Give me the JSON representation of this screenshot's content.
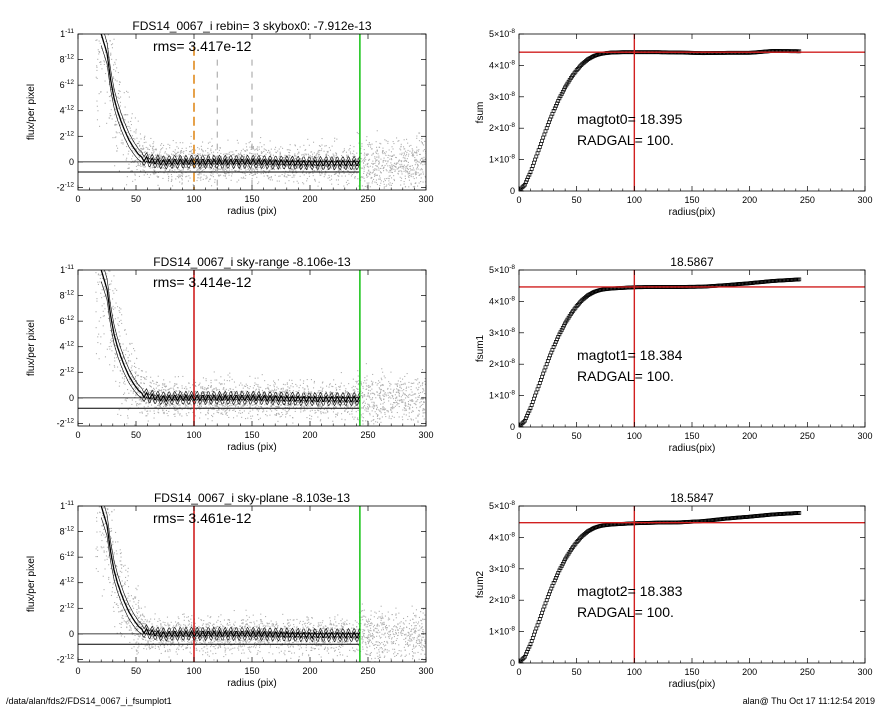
{
  "footer": {
    "path": "/data/alan/fds2/FDS14_0067_i_fsumplot1",
    "stamp": "alan@  Thu Oct 17 11:12:54 2019"
  },
  "colors": {
    "scatter": "#b0b0b0",
    "orange": "#e08a1e",
    "red": "#d11f1f",
    "green": "#22c522",
    "profile": "#000000"
  },
  "chart_data": [
    {
      "type": "scatter",
      "title": "FDS14_0067_i rebin= 3    skybox0: -7.912e-13",
      "annotation": "rms= 3.417e-12",
      "xlabel": "radius (pix)",
      "ylabel": "flux/per pixel",
      "xlim": [
        0,
        300
      ],
      "ylim": [
        -2.2e-12,
        1e-11
      ],
      "xticks": [
        "0",
        "50",
        "100",
        "150",
        "200",
        "250",
        "300"
      ],
      "yticks": [
        {
          "v": 1e-11,
          "m": "1",
          "e": "-11"
        },
        {
          "v": 8e-12,
          "m": "8",
          "e": "-12"
        },
        {
          "v": 6e-12,
          "m": "6",
          "e": "-12"
        },
        {
          "v": 4e-12,
          "m": "4",
          "e": "-12"
        },
        {
          "v": 2e-12,
          "m": "2",
          "e": "-12"
        },
        {
          "v": 0,
          "m": "0",
          "e": ""
        },
        {
          "v": -2e-12,
          "m": "-2",
          "e": "-12"
        }
      ],
      "profile": {
        "radius": [
          20,
          25,
          28,
          31,
          34,
          37,
          40,
          44,
          48,
          52,
          56,
          60,
          65,
          70,
          75,
          80,
          90,
          100,
          120,
          150,
          200,
          243
        ],
        "flux": [
          1e-11,
          8.5e-12,
          6.5e-12,
          5e-12,
          4e-12,
          3.2e-12,
          2.5e-12,
          1.7e-12,
          1.1e-12,
          6e-13,
          3e-13,
          1.5e-13,
          5e-14,
          0,
          -5e-14,
          0,
          0,
          0,
          0,
          0,
          -1e-13,
          -1e-13
        ]
      },
      "hlines": [
        0,
        -7.912e-13
      ],
      "vlines": [
        {
          "x": 100,
          "color": "orange",
          "style": "dashed"
        },
        {
          "x": 120,
          "color": "gray",
          "style": "dashed"
        },
        {
          "x": 150,
          "color": "gray",
          "style": "dashed"
        },
        {
          "x": 243,
          "color": "green",
          "style": "solid"
        }
      ]
    },
    {
      "type": "scatter",
      "title": "FDS14_0067_i sky-range -8.106e-13",
      "annotation": "rms= 3.414e-12",
      "xlabel": "radius (pix)",
      "ylabel": "flux/per pixel",
      "xlim": [
        0,
        300
      ],
      "ylim": [
        -2.2e-12,
        1e-11
      ],
      "xticks": [
        "0",
        "50",
        "100",
        "150",
        "200",
        "250",
        "300"
      ],
      "yticks": [
        {
          "v": 1e-11,
          "m": "1",
          "e": "-11"
        },
        {
          "v": 8e-12,
          "m": "8",
          "e": "-12"
        },
        {
          "v": 6e-12,
          "m": "6",
          "e": "-12"
        },
        {
          "v": 4e-12,
          "m": "4",
          "e": "-12"
        },
        {
          "v": 2e-12,
          "m": "2",
          "e": "-12"
        },
        {
          "v": 0,
          "m": "0",
          "e": ""
        },
        {
          "v": -2e-12,
          "m": "-2",
          "e": "-12"
        }
      ],
      "profile": {
        "radius": [
          20,
          25,
          28,
          31,
          34,
          37,
          40,
          44,
          48,
          52,
          56,
          60,
          65,
          70,
          75,
          80,
          90,
          100,
          120,
          150,
          200,
          243
        ],
        "flux": [
          1e-11,
          8.5e-12,
          6.5e-12,
          5e-12,
          4e-12,
          3.2e-12,
          2.5e-12,
          1.7e-12,
          1.1e-12,
          6e-13,
          3e-13,
          1.5e-13,
          5e-14,
          0,
          -5e-14,
          0,
          0,
          0,
          0,
          0,
          -1e-13,
          -1e-13
        ]
      },
      "hlines": [
        0,
        -8.106e-13
      ],
      "vlines": [
        {
          "x": 100,
          "color": "red",
          "style": "solid"
        },
        {
          "x": 243,
          "color": "green",
          "style": "solid"
        }
      ]
    },
    {
      "type": "scatter",
      "title": "FDS14_0067_i sky-plane -8.103e-13",
      "annotation": "rms= 3.461e-12",
      "xlabel": "radius (pix)",
      "ylabel": "flux/per pixel",
      "xlim": [
        0,
        300
      ],
      "ylim": [
        -2.2e-12,
        1e-11
      ],
      "xticks": [
        "0",
        "50",
        "100",
        "150",
        "200",
        "250",
        "300"
      ],
      "yticks": [
        {
          "v": 1e-11,
          "m": "1",
          "e": "-11"
        },
        {
          "v": 8e-12,
          "m": "8",
          "e": "-12"
        },
        {
          "v": 6e-12,
          "m": "6",
          "e": "-12"
        },
        {
          "v": 4e-12,
          "m": "4",
          "e": "-12"
        },
        {
          "v": 2e-12,
          "m": "2",
          "e": "-12"
        },
        {
          "v": 0,
          "m": "0",
          "e": ""
        },
        {
          "v": -2e-12,
          "m": "-2",
          "e": "-12"
        }
      ],
      "profile": {
        "radius": [
          20,
          25,
          28,
          31,
          34,
          37,
          40,
          44,
          48,
          52,
          56,
          60,
          65,
          70,
          75,
          80,
          90,
          100,
          120,
          150,
          200,
          243
        ],
        "flux": [
          1e-11,
          8.5e-12,
          6.5e-12,
          5e-12,
          4e-12,
          3.2e-12,
          2.5e-12,
          1.7e-12,
          1.1e-12,
          6e-13,
          3e-13,
          1.5e-13,
          5e-14,
          0,
          -5e-14,
          0,
          0,
          0,
          0,
          0,
          -1e-13,
          -1e-13
        ]
      },
      "hlines": [
        0,
        -8.103e-13
      ],
      "vlines": [
        {
          "x": 100,
          "color": "red",
          "style": "solid"
        },
        {
          "x": 243,
          "color": "green",
          "style": "solid"
        }
      ]
    },
    {
      "type": "line",
      "title": "",
      "xlabel": "radius(pix)",
      "ylabel": "fsum",
      "xlim": [
        0,
        300
      ],
      "ylim": [
        0,
        5e-08
      ],
      "xticks": [
        "0",
        "50",
        "100",
        "150",
        "200",
        "250",
        "300"
      ],
      "yticks": [
        {
          "v": 0,
          "m": "0",
          "e": ""
        },
        {
          "v": 1e-08,
          "m": "1×10",
          "e": "-8"
        },
        {
          "v": 2e-08,
          "m": "2×10",
          "e": "-8"
        },
        {
          "v": 3e-08,
          "m": "3×10",
          "e": "-8"
        },
        {
          "v": 4e-08,
          "m": "4×10",
          "e": "-8"
        },
        {
          "v": 5e-08,
          "m": "5×10",
          "e": "-8"
        }
      ],
      "annotations": [
        "magtot0=  18.395",
        "RADGAL=    100."
      ],
      "hline": 4.42e-08,
      "vline": 100,
      "curve": {
        "radius": [
          0,
          5,
          10,
          15,
          20,
          25,
          30,
          35,
          40,
          45,
          50,
          55,
          60,
          65,
          70,
          75,
          80,
          90,
          100,
          120,
          140,
          160,
          180,
          200,
          220,
          243
        ],
        "fsum": [
          0,
          2e-09,
          6e-09,
          1.1e-08,
          1.6e-08,
          2.1e-08,
          2.55e-08,
          2.95e-08,
          3.3e-08,
          3.6e-08,
          3.85e-08,
          4.05e-08,
          4.2e-08,
          4.3e-08,
          4.36e-08,
          4.39e-08,
          4.41e-08,
          4.42e-08,
          4.42e-08,
          4.42e-08,
          4.41e-08,
          4.39e-08,
          4.4e-08,
          4.4e-08,
          4.46e-08,
          4.45e-08
        ]
      }
    },
    {
      "type": "line",
      "title": "18.5867",
      "xlabel": "radius(pix)",
      "ylabel": "fsum1",
      "xlim": [
        0,
        300
      ],
      "ylim": [
        0,
        5e-08
      ],
      "xticks": [
        "0",
        "50",
        "100",
        "150",
        "200",
        "250",
        "300"
      ],
      "yticks": [
        {
          "v": 0,
          "m": "0",
          "e": ""
        },
        {
          "v": 1e-08,
          "m": "1×10",
          "e": "-8"
        },
        {
          "v": 2e-08,
          "m": "2×10",
          "e": "-8"
        },
        {
          "v": 3e-08,
          "m": "3×10",
          "e": "-8"
        },
        {
          "v": 4e-08,
          "m": "4×10",
          "e": "-8"
        },
        {
          "v": 5e-08,
          "m": "5×10",
          "e": "-8"
        }
      ],
      "annotations": [
        "magtot1=  18.384",
        "RADGAL=    100."
      ],
      "hline": 4.46e-08,
      "vline": 100,
      "curve": {
        "radius": [
          0,
          5,
          10,
          15,
          20,
          25,
          30,
          35,
          40,
          45,
          50,
          55,
          60,
          65,
          70,
          75,
          80,
          90,
          100,
          120,
          140,
          160,
          180,
          200,
          220,
          243
        ],
        "fsum": [
          0,
          2e-09,
          6e-09,
          1.1e-08,
          1.6e-08,
          2.1e-08,
          2.55e-08,
          2.95e-08,
          3.3e-08,
          3.6e-08,
          3.85e-08,
          4.05e-08,
          4.2e-08,
          4.3e-08,
          4.36e-08,
          4.39e-08,
          4.41e-08,
          4.43e-08,
          4.45e-08,
          4.46e-08,
          4.46e-08,
          4.47e-08,
          4.52e-08,
          4.58e-08,
          4.65e-08,
          4.7e-08
        ]
      }
    },
    {
      "type": "line",
      "title": "18.5847",
      "xlabel": "radius(pix)",
      "ylabel": "fsum2",
      "xlim": [
        0,
        300
      ],
      "ylim": [
        0,
        5e-08
      ],
      "xticks": [
        "0",
        "50",
        "100",
        "150",
        "200",
        "250",
        "300"
      ],
      "yticks": [
        {
          "v": 0,
          "m": "0",
          "e": ""
        },
        {
          "v": 1e-08,
          "m": "1×10",
          "e": "-8"
        },
        {
          "v": 2e-08,
          "m": "2×10",
          "e": "-8"
        },
        {
          "v": 3e-08,
          "m": "3×10",
          "e": "-8"
        },
        {
          "v": 4e-08,
          "m": "4×10",
          "e": "-8"
        },
        {
          "v": 5e-08,
          "m": "5×10",
          "e": "-8"
        }
      ],
      "annotations": [
        "magtot2=  18.383",
        "RADGAL=    100."
      ],
      "hline": 4.47e-08,
      "vline": 100,
      "curve": {
        "radius": [
          0,
          5,
          10,
          15,
          20,
          25,
          30,
          35,
          40,
          45,
          50,
          55,
          60,
          65,
          70,
          75,
          80,
          90,
          100,
          120,
          140,
          160,
          180,
          200,
          220,
          243
        ],
        "fsum": [
          0,
          2e-09,
          6e-09,
          1.1e-08,
          1.6e-08,
          2.1e-08,
          2.55e-08,
          2.95e-08,
          3.3e-08,
          3.6e-08,
          3.85e-08,
          4.05e-08,
          4.2e-08,
          4.3e-08,
          4.36e-08,
          4.39e-08,
          4.41e-08,
          4.43e-08,
          4.45e-08,
          4.47e-08,
          4.48e-08,
          4.52e-08,
          4.6e-08,
          4.66e-08,
          4.73e-08,
          4.78e-08
        ]
      }
    }
  ]
}
